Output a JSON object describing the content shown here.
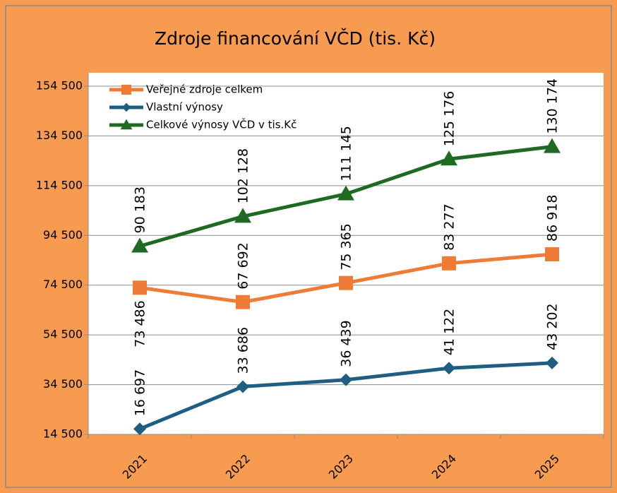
{
  "chart_data": {
    "type": "line",
    "title": "Zdroje financování VČD (tis. Kč)",
    "categories": [
      "2021",
      "2022",
      "2023",
      "2024",
      "2025"
    ],
    "series": [
      {
        "name": "Veřejné zdroje celkem",
        "color": "#ee7b36",
        "marker": "square",
        "values": [
          73486,
          67692,
          75365,
          83277,
          86918
        ],
        "value_labels": [
          "73 486",
          "67 692",
          "75 365",
          "83 277",
          "86 918"
        ]
      },
      {
        "name": "Vlastní výnosy",
        "color": "#1f5e83",
        "marker": "diamond",
        "values": [
          16697,
          33686,
          36439,
          41122,
          43202
        ],
        "value_labels": [
          "16 697",
          "33 686",
          "36 439",
          "41 122",
          "43 202"
        ]
      },
      {
        "name": "Celkové výnosy VČD v tis.Kč",
        "color": "#1f6a22",
        "marker": "triangle",
        "values": [
          90183,
          102128,
          111145,
          125176,
          130174
        ],
        "value_labels": [
          "90 183",
          "102 128",
          "111 145",
          "125 176",
          "130 174"
        ]
      }
    ],
    "ylim": [
      14500,
      154500
    ],
    "yticks": [
      {
        "value": 14500,
        "label": "14 500"
      },
      {
        "value": 34500,
        "label": "34 500"
      },
      {
        "value": 54500,
        "label": "54 500"
      },
      {
        "value": 74500,
        "label": "74 500"
      },
      {
        "value": 94500,
        "label": "94 500"
      },
      {
        "value": 114500,
        "label": "114 500"
      },
      {
        "value": 134500,
        "label": "134 500"
      },
      {
        "value": 154500,
        "label": "154 500"
      }
    ],
    "grid": true,
    "legend": "top-left"
  }
}
